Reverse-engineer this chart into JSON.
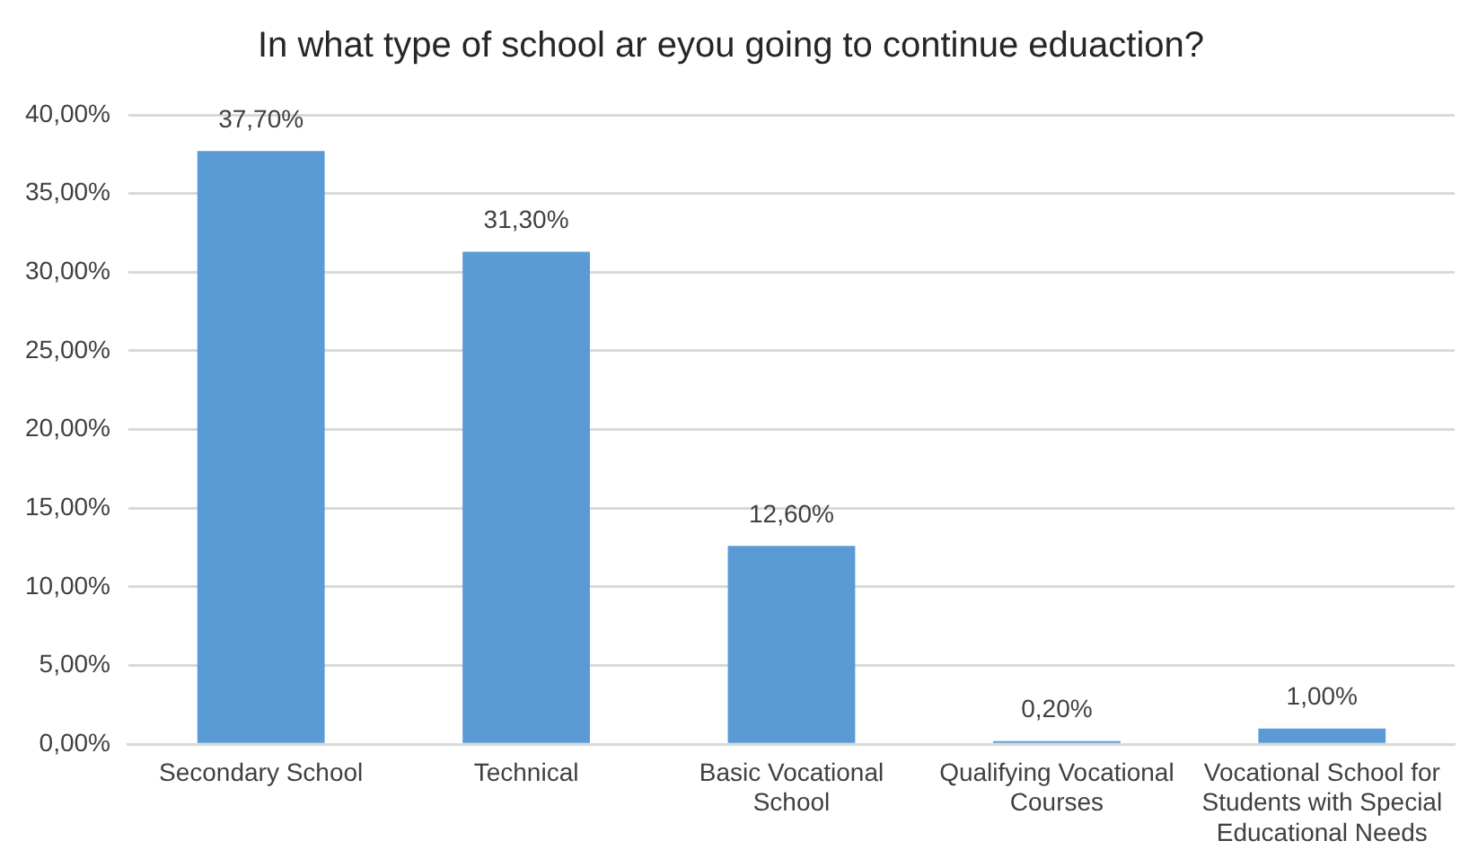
{
  "chart_data": {
    "type": "bar",
    "title": "In what type of school ar eyou going to continue eduaction?",
    "categories": [
      "Secondary School",
      "Technical",
      "Basic Vocational School",
      "Qualifying Vocational Courses",
      "Vocational School for Students with Special Educational Needs"
    ],
    "values": [
      37.7,
      31.3,
      12.6,
      0.2,
      1.0
    ],
    "value_labels": [
      "37,70%",
      "31,30%",
      "12,60%",
      "0,20%",
      "1,00%"
    ],
    "color": "#5b9bd5",
    "ylim": [
      0,
      40
    ],
    "yticks": [
      {
        "value": 0,
        "label": "0,00%"
      },
      {
        "value": 5,
        "label": "5,00%"
      },
      {
        "value": 10,
        "label": "10,00%"
      },
      {
        "value": 15,
        "label": "15,00%"
      },
      {
        "value": 20,
        "label": "20,00%"
      },
      {
        "value": 25,
        "label": "25,00%"
      },
      {
        "value": 30,
        "label": "30,00%"
      },
      {
        "value": 35,
        "label": "35,00%"
      },
      {
        "value": 40,
        "label": "40,00%"
      }
    ],
    "grid": "y",
    "legend": false
  }
}
